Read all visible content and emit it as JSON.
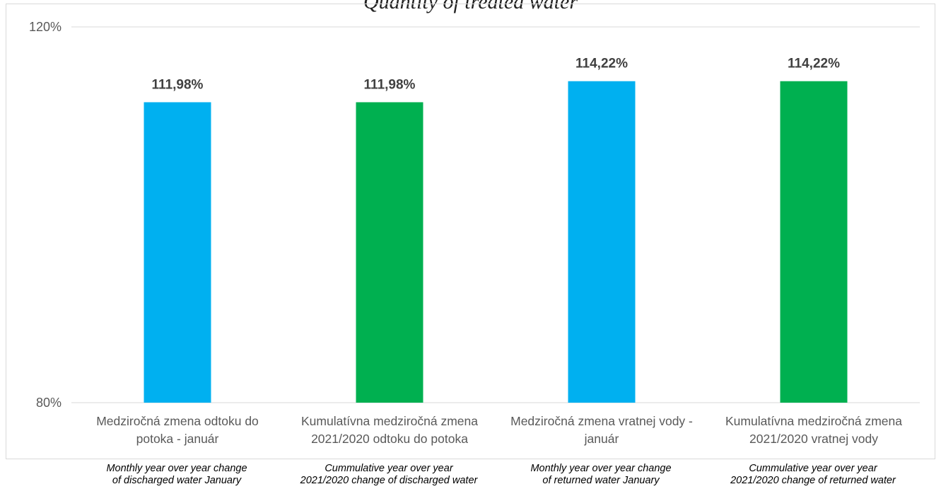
{
  "chart_data": {
    "type": "bar",
    "title": "Quantity of treated water",
    "categories": [
      [
        "Medziročná zmena odtoku do",
        "potoka - január"
      ],
      [
        "Kumulatívna medziročná zmena",
        "2021/2020 odtoku do potoka"
      ],
      [
        "Medziročná zmena vratnej vody -",
        "január"
      ],
      [
        "Kumulatívna medziročná zmena",
        "2021/2020 vratnej vody"
      ]
    ],
    "values": [
      111.98,
      111.98,
      114.22,
      114.22
    ],
    "value_labels": [
      "111,98%",
      "111,98%",
      "114,22%",
      "114,22%"
    ],
    "bar_colors": [
      "#00b0f0",
      "#00b050",
      "#00b0f0",
      "#00b050"
    ],
    "ylim": [
      80,
      120
    ],
    "yticks": [
      {
        "value": 120,
        "label": "120%"
      },
      {
        "value": 80,
        "label": "80%"
      }
    ],
    "grid": true,
    "legend": "none"
  },
  "english_labels": [
    [
      "Monthly year over year change",
      "of discharged water January"
    ],
    [
      "Cummulative year over year",
      "2021/2020 change of discharged water"
    ],
    [
      "Monthly year over year change",
      "of returned water January"
    ],
    [
      "Cummulative year over year",
      "2021/2020 change of returned water"
    ]
  ]
}
